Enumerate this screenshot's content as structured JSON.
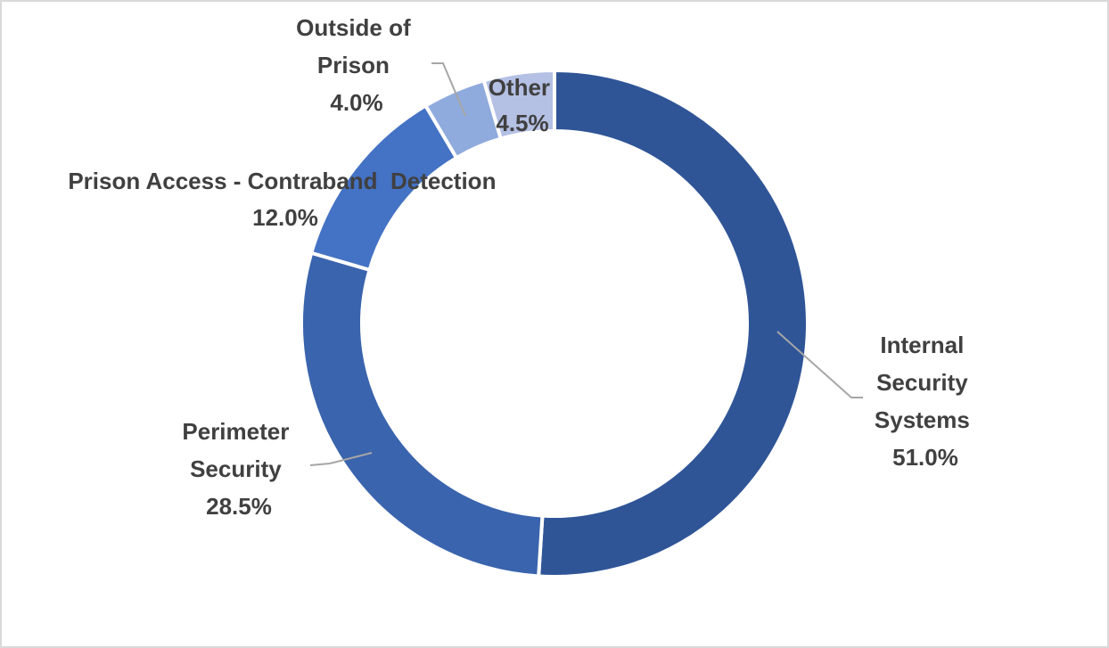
{
  "chart_data": {
    "type": "pie",
    "variant": "donut",
    "title": "",
    "categories": [
      "Internal Security Systems",
      "Perimeter Security",
      "Prison Access - Contraband Detection",
      "Outside of Prison",
      "Other"
    ],
    "values": [
      51.0,
      28.5,
      12.0,
      4.0,
      4.5
    ],
    "unit": "%",
    "colors": [
      "#2f5597",
      "#3a64ad",
      "#4472c4",
      "#8faadc",
      "#b4c0e4"
    ],
    "legend": "none",
    "data_labels": "category and percentage, outside with leader lines"
  },
  "labels": {
    "internal": {
      "lines": [
        "Internal",
        "Security",
        "Systems"
      ],
      "pct": "51.0%"
    },
    "perimeter": {
      "lines": [
        "Perimeter",
        "Security"
      ],
      "pct": "28.5%"
    },
    "access": {
      "lines": [
        "Prison Access - Contraband  Detection"
      ],
      "pct": "12.0%"
    },
    "outside": {
      "lines": [
        "Outside of",
        "Prison"
      ],
      "pct": "4.0%"
    },
    "other": {
      "lines": [
        "Other"
      ],
      "pct": "4.5%"
    }
  }
}
